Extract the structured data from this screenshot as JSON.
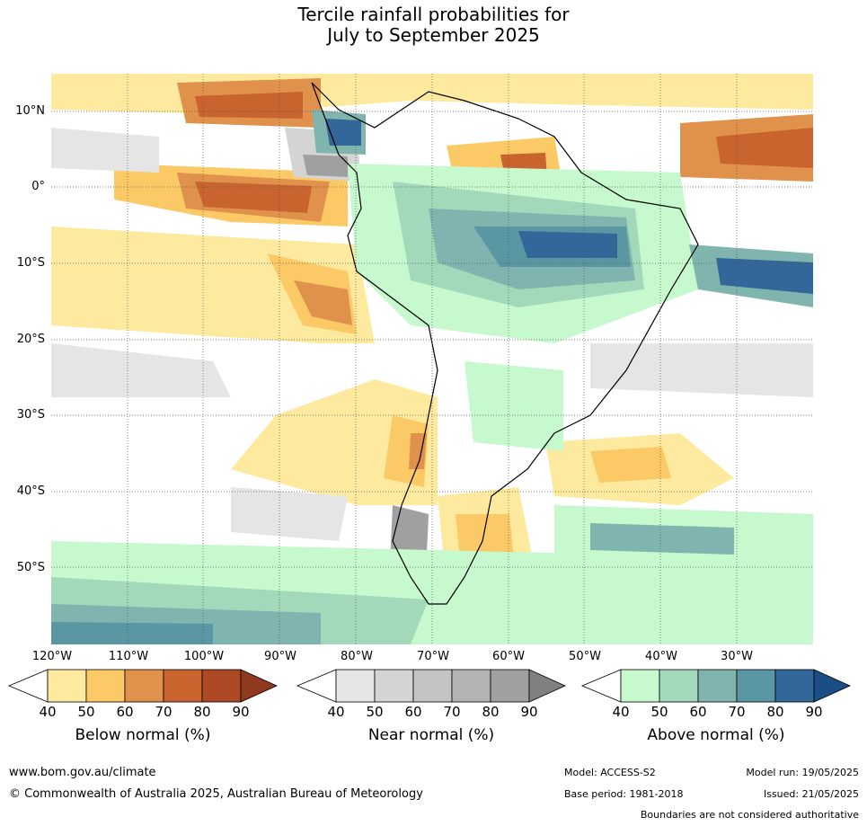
{
  "title": {
    "line1": "Tercile rainfall probabilities for",
    "line2": "July to September 2025"
  },
  "map": {
    "lat_labels": [
      "10°N",
      "0°",
      "10°S",
      "20°S",
      "30°S",
      "40°S",
      "50°S"
    ],
    "lon_labels": [
      "120°W",
      "110°W",
      "100°W",
      "90°W",
      "80°W",
      "70°W",
      "60°W",
      "50°W",
      "40°W",
      "30°W"
    ]
  },
  "colorbars": [
    {
      "title": "Below normal (%)",
      "ticks": [
        "40",
        "50",
        "60",
        "70",
        "80",
        "90"
      ],
      "colors": [
        "#ffffff",
        "#feea9f",
        "#fcc967",
        "#e0914b",
        "#c9642e",
        "#ad4a25",
        "#8f3a1e"
      ]
    },
    {
      "title": "Near normal (%)",
      "ticks": [
        "40",
        "50",
        "60",
        "70",
        "80",
        "90"
      ],
      "colors": [
        "#ffffff",
        "#e5e5e5",
        "#d4d4d4",
        "#c4c4c4",
        "#b3b3b3",
        "#a0a0a0",
        "#808080"
      ]
    },
    {
      "title": "Above normal (%)",
      "ticks": [
        "40",
        "50",
        "60",
        "70",
        "80",
        "90"
      ],
      "colors": [
        "#ffffff",
        "#c6f9cd",
        "#a2d9bb",
        "#7fb5ae",
        "#5b96a3",
        "#336699",
        "#1a4e85"
      ]
    }
  ],
  "footer": {
    "website": "www.bom.gov.au/climate",
    "copyright": "© Commonwealth of Australia 2025, Australian Bureau of Meteorology",
    "model": "Model: ACCESS-S2",
    "model_run": "Model run: 19/05/2025",
    "base_period": "Base period: 1981-2018",
    "issued": "Issued: 21/05/2025",
    "disclaimer": "Boundaries are not considered authoritative"
  }
}
